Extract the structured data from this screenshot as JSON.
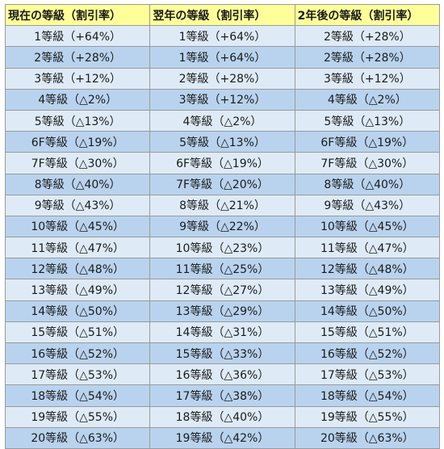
{
  "headers": [
    "現在の等級（割引率）",
    "翌年の等級（割引率）",
    "2年後の等級（割引率）"
  ],
  "rows": [
    [
      "1等級（+64%）",
      "1等級（+64%）",
      "2等級（+28%）"
    ],
    [
      "2等級（+28%）",
      "1等級（+64%）",
      "2等級（+28%）"
    ],
    [
      "3等級（+12%）",
      "2等級（+28%）",
      "3等級（+12%）"
    ],
    [
      "4等級（△2%）",
      "3等級（+12%）",
      "4等級（△2%）"
    ],
    [
      "5等級（△13%）",
      "4等級（△2%）",
      "5等級（△13%）"
    ],
    [
      "6F等級（△19%）",
      "5等級（△13%）",
      "6F等級（△19%）"
    ],
    [
      "7F等級（△30%）",
      "6F等級（△19%）",
      "7F等級（△30%）"
    ],
    [
      "8等級（△40%）",
      "7F等級（△20%）",
      "8等級（△40%）"
    ],
    [
      "9等級（△43%）",
      "8等級（△21%）",
      "9等級（△43%）"
    ],
    [
      "10等級（△45%）",
      "9等級（△22%）",
      "10等級（△45%）"
    ],
    [
      "11等級（△47%）",
      "10等級（△23%）",
      "11等級（△47%）"
    ],
    [
      "12等級（△48%）",
      "11等級（△25%）",
      "12等級（△48%）"
    ],
    [
      "13等級（△49%）",
      "12等級（△27%）",
      "13等級（△49%）"
    ],
    [
      "14等級（△50%）",
      "13等級（△29%）",
      "14等級（△50%）"
    ],
    [
      "15等級（△51%）",
      "14等級（△31%）",
      "15等級（△51%）"
    ],
    [
      "16等級（△52%）",
      "15等級（△33%）",
      "16等級（△52%）"
    ],
    [
      "17等級（△53%）",
      "16等級（△36%）",
      "17等級（△53%）"
    ],
    [
      "18等級（△54%）",
      "17等級（△38%）",
      "18等級（△54%）"
    ],
    [
      "19等級（△55%）",
      "18等級（△40%）",
      "19等級（△55%）"
    ],
    [
      "20等級（△63%）",
      "19等級（△42%）",
      "20等級（△63%）"
    ]
  ],
  "colors": {
    "header_bg": "#ffff99",
    "row_light": "#deebf7",
    "row_dark": "#b9d3ee",
    "border": "#9a9a9a"
  }
}
